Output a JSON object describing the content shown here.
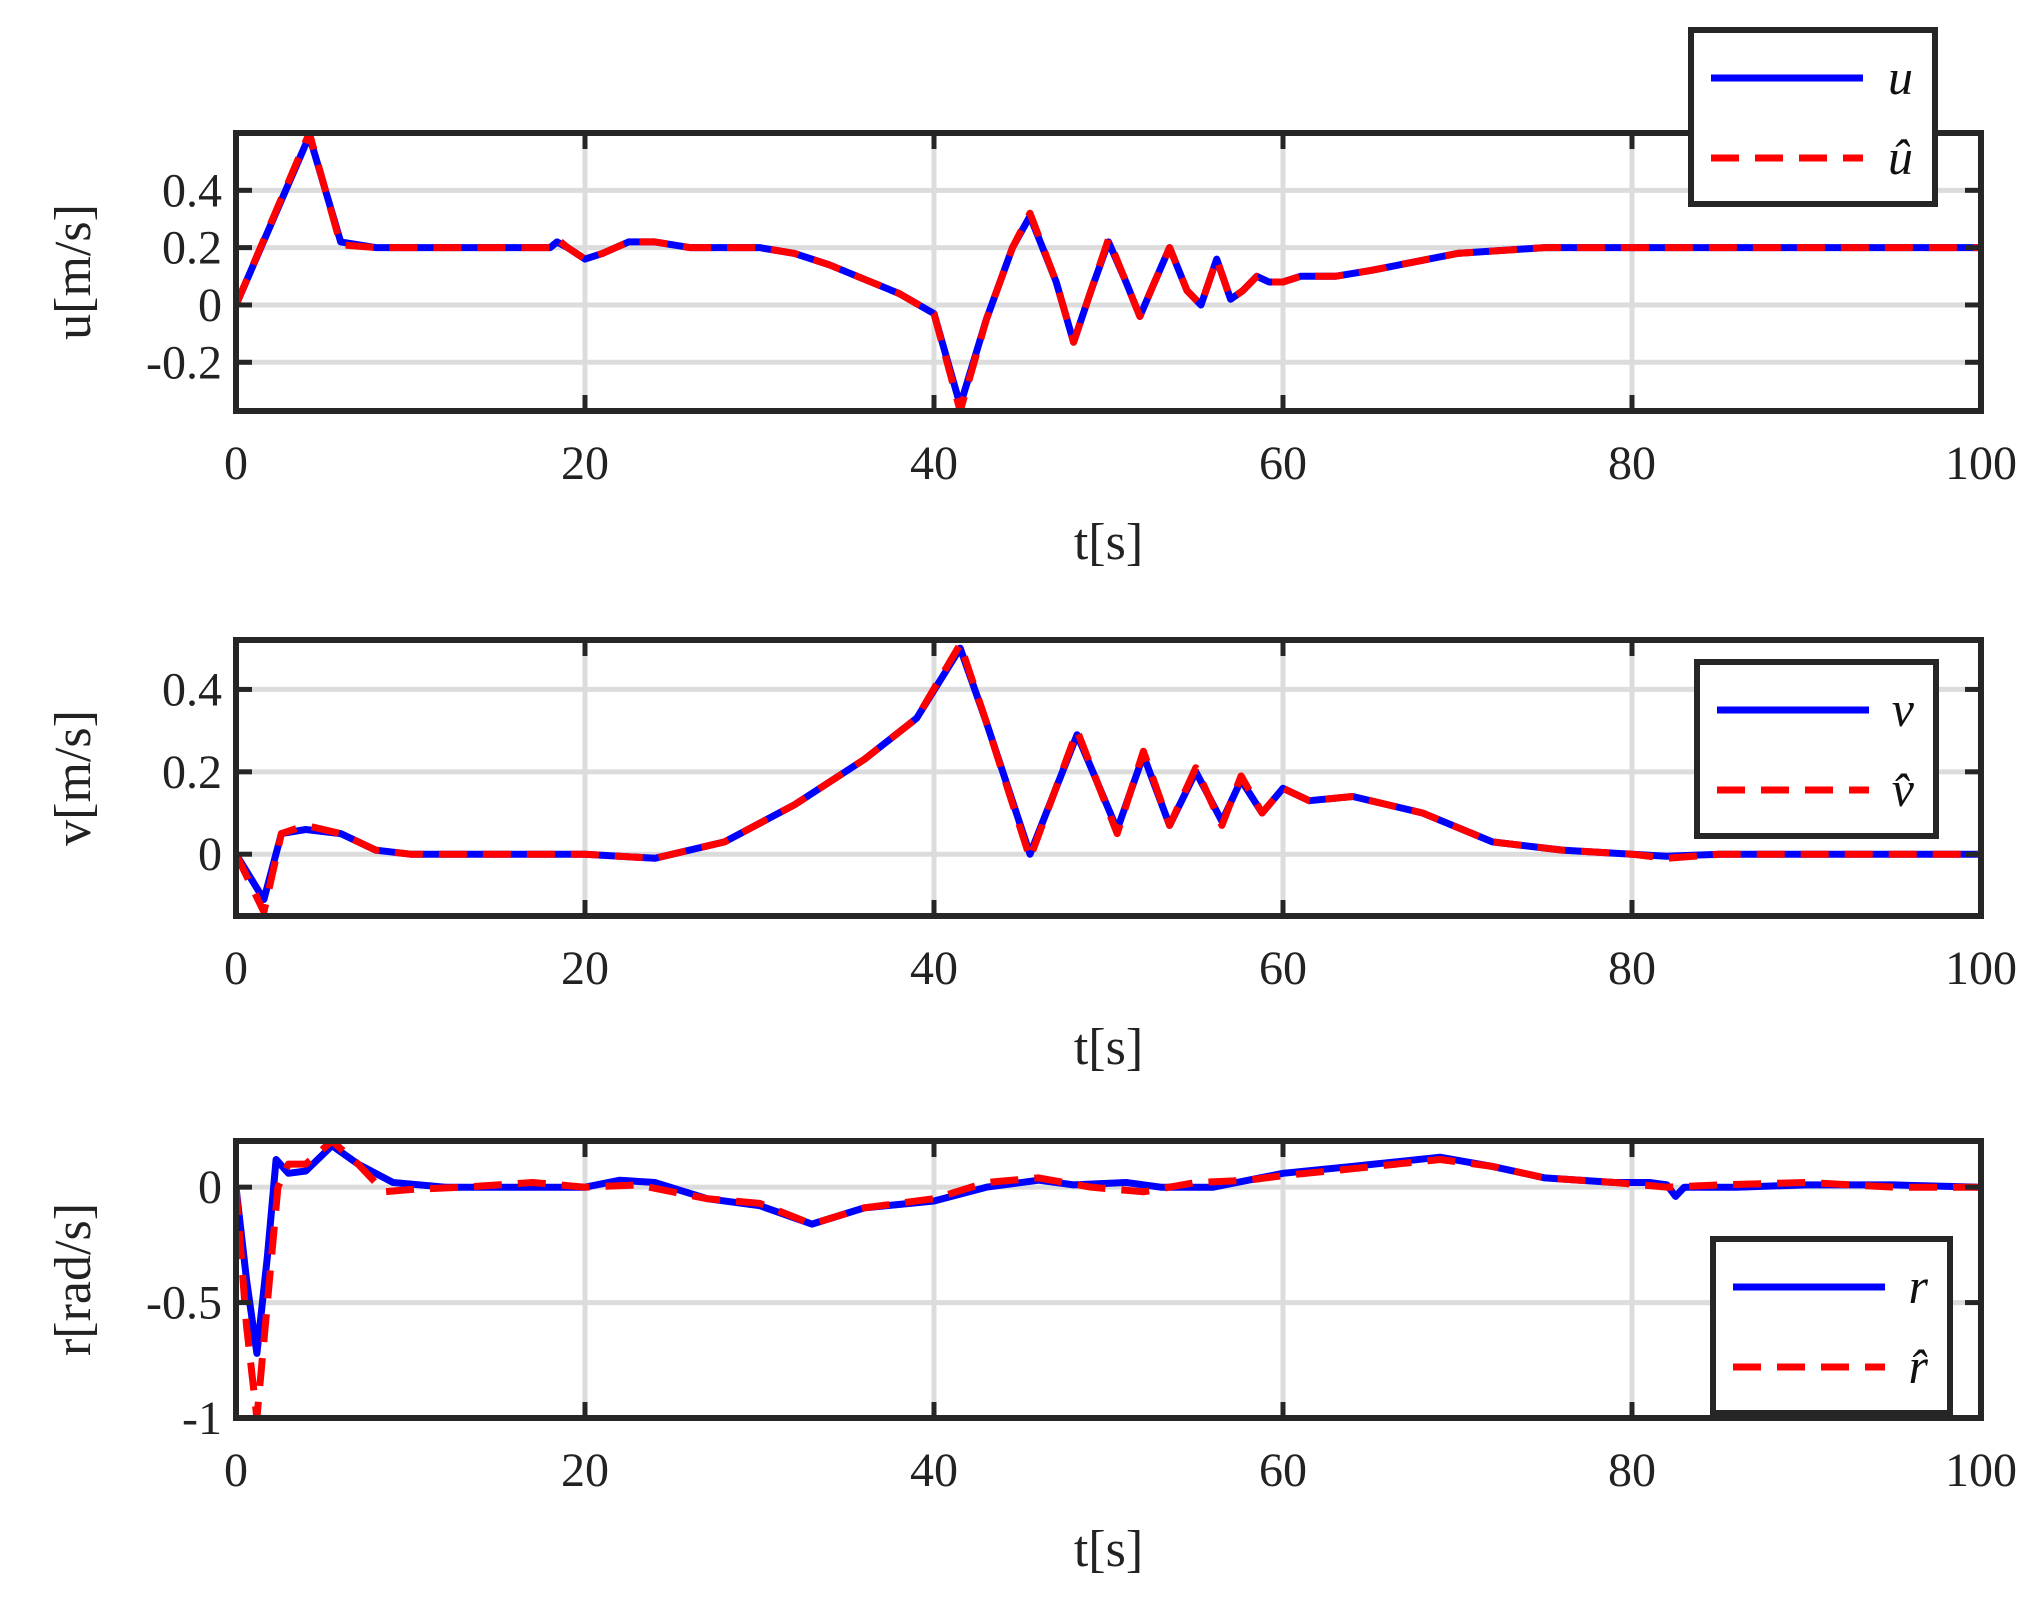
{
  "colors": {
    "measured": "#0000ff",
    "estimated": "#ff0000",
    "grid": "#dcdcdc",
    "frame": "#262626"
  },
  "chart_data": [
    {
      "type": "line",
      "xlabel": "t[s]",
      "ylabel": "u[m/s]",
      "xlim": [
        0,
        100
      ],
      "ylim": [
        -0.37,
        0.6
      ],
      "xticks": [
        0,
        20,
        40,
        60,
        80,
        100
      ],
      "yticks": [
        0.4,
        0.2,
        0,
        -0.2
      ],
      "ytick_labels": [
        "0.4",
        "0.2",
        "0",
        "-0.2"
      ],
      "grid": true,
      "legend_position": "top-right",
      "series": [
        {
          "name": "u",
          "x": [
            0,
            4.2,
            6,
            8,
            10,
            18,
            18.4,
            19,
            20,
            21,
            22.5,
            24,
            26,
            28,
            30,
            32,
            34,
            36,
            38,
            40,
            41.5,
            43,
            44.5,
            45.5,
            47,
            48,
            49,
            50,
            51,
            51.8,
            52.5,
            53.5,
            54.5,
            55.3,
            56.2,
            57,
            57.7,
            58.5,
            59.2,
            60,
            61,
            63,
            65,
            70,
            75,
            80,
            85,
            90,
            95,
            100
          ],
          "y": [
            0,
            0.59,
            0.22,
            0.2,
            0.2,
            0.2,
            0.22,
            0.2,
            0.16,
            0.18,
            0.22,
            0.22,
            0.2,
            0.2,
            0.2,
            0.18,
            0.14,
            0.09,
            0.04,
            -0.03,
            -0.35,
            -0.05,
            0.2,
            0.31,
            0.08,
            -0.13,
            0.05,
            0.22,
            0.08,
            -0.04,
            0.06,
            0.2,
            0.05,
            0,
            0.16,
            0.02,
            0.05,
            0.1,
            0.08,
            0.08,
            0.1,
            0.1,
            0.12,
            0.18,
            0.2,
            0.2,
            0.2,
            0.2,
            0.2,
            0.2
          ]
        },
        {
          "name": "û",
          "x": [
            0,
            4.2,
            6,
            8,
            10,
            18,
            18.4,
            19,
            20,
            21,
            22.5,
            24,
            26,
            28,
            30,
            32,
            34,
            36,
            38,
            40,
            41.5,
            43,
            44.5,
            45.5,
            47,
            48,
            49,
            50,
            51,
            51.8,
            52.5,
            53.5,
            54.5,
            55.3,
            56.2,
            57,
            57.7,
            58.5,
            59.2,
            60,
            61,
            63,
            65,
            70,
            75,
            80,
            85,
            90,
            95,
            100
          ],
          "y": [
            0,
            0.6,
            0.21,
            0.2,
            0.2,
            0.2,
            0.23,
            0.2,
            0.16,
            0.18,
            0.22,
            0.22,
            0.2,
            0.2,
            0.2,
            0.18,
            0.14,
            0.09,
            0.04,
            -0.03,
            -0.37,
            -0.05,
            0.2,
            0.32,
            0.08,
            -0.13,
            0.05,
            0.23,
            0.08,
            -0.04,
            0.06,
            0.2,
            0.05,
            0,
            0.16,
            0.02,
            0.05,
            0.1,
            0.08,
            0.08,
            0.1,
            0.1,
            0.12,
            0.18,
            0.2,
            0.2,
            0.2,
            0.2,
            0.2,
            0.2
          ]
        }
      ]
    },
    {
      "type": "line",
      "xlabel": "t[s]",
      "ylabel": "v[m/s]",
      "xlim": [
        0,
        100
      ],
      "ylim": [
        -0.15,
        0.52
      ],
      "xticks": [
        0,
        20,
        40,
        60,
        80,
        100
      ],
      "yticks": [
        0.4,
        0.2,
        0
      ],
      "ytick_labels": [
        "0.4",
        "0.2",
        "0"
      ],
      "grid": true,
      "legend_position": "top-right",
      "series": [
        {
          "name": "v",
          "x": [
            0,
            1.6,
            2.6,
            4,
            6,
            8,
            10,
            15,
            20,
            24,
            28,
            32,
            36,
            39,
            41.5,
            43,
            45.5,
            48.2,
            50.5,
            52,
            53.5,
            55,
            56.5,
            57.6,
            58.8,
            60,
            61.5,
            64,
            68,
            72,
            76,
            80,
            82,
            85,
            90,
            95,
            100
          ],
          "y": [
            0,
            -0.11,
            0.05,
            0.06,
            0.05,
            0.01,
            0,
            0,
            0,
            -0.01,
            0.03,
            0.12,
            0.23,
            0.33,
            0.5,
            0.32,
            0,
            0.29,
            0.06,
            0.24,
            0.07,
            0.2,
            0.08,
            0.18,
            0.1,
            0.16,
            0.13,
            0.14,
            0.1,
            0.03,
            0.01,
            0,
            -0.005,
            0,
            0,
            0,
            0
          ]
        },
        {
          "name": "v̂",
          "x": [
            0,
            1.6,
            2.6,
            4,
            6,
            8,
            10,
            15,
            20,
            24,
            28,
            32,
            36,
            39,
            41.5,
            43,
            45.5,
            48.2,
            50.5,
            52,
            53.5,
            55,
            56.5,
            57.6,
            58.8,
            60,
            61.5,
            64,
            68,
            72,
            76,
            80,
            82,
            85,
            90,
            95,
            100
          ],
          "y": [
            0,
            -0.14,
            0.05,
            0.07,
            0.05,
            0.01,
            0,
            0,
            0,
            -0.01,
            0.03,
            0.12,
            0.23,
            0.33,
            0.51,
            0.32,
            -0.01,
            0.3,
            0.05,
            0.25,
            0.07,
            0.21,
            0.07,
            0.19,
            0.1,
            0.16,
            0.13,
            0.14,
            0.1,
            0.03,
            0.01,
            0,
            -0.01,
            0,
            0,
            0,
            0
          ]
        }
      ]
    },
    {
      "type": "line",
      "xlabel": "t[s]",
      "ylabel": "r[rad/s]",
      "xlim": [
        0,
        100
      ],
      "ylim": [
        -1,
        0.2
      ],
      "xticks": [
        0,
        20,
        40,
        60,
        80,
        100
      ],
      "yticks": [
        0,
        -0.5,
        -1
      ],
      "ytick_labels": [
        "0",
        "-0.5",
        "-1"
      ],
      "grid": true,
      "legend_position": "bottom-right",
      "series": [
        {
          "name": "r",
          "x": [
            0,
            0.6,
            1.2,
            1.8,
            2.3,
            3,
            4,
            5.5,
            7,
            9,
            12,
            16,
            20,
            22,
            24,
            27,
            30,
            33,
            36,
            40,
            43,
            46,
            48,
            51,
            53,
            56,
            60,
            64,
            69,
            72,
            75,
            79,
            81,
            82,
            82.5,
            83,
            86,
            90,
            95,
            100
          ],
          "y": [
            0,
            -0.4,
            -0.72,
            -0.3,
            0.12,
            0.06,
            0.07,
            0.18,
            0.1,
            0.02,
            0,
            0,
            0,
            0.03,
            0.02,
            -0.05,
            -0.08,
            -0.16,
            -0.09,
            -0.06,
            0,
            0.03,
            0.01,
            0.02,
            0,
            0,
            0.06,
            0.09,
            0.13,
            0.09,
            0.04,
            0.02,
            0.02,
            0.01,
            -0.04,
            0,
            0,
            0.01,
            0.01,
            0
          ]
        },
        {
          "name": "r̂",
          "x": [
            0,
            0.6,
            1.2,
            1.8,
            2.4,
            3,
            4,
            5.5,
            7,
            8.5,
            10,
            13,
            17,
            20,
            23,
            27,
            30,
            33,
            36,
            40,
            43,
            46,
            49,
            52,
            55,
            58,
            60,
            64,
            69,
            72,
            75,
            79,
            82,
            85,
            90,
            95,
            100
          ],
          "y": [
            0,
            -0.6,
            -1,
            -0.5,
            0,
            0.1,
            0.1,
            0.2,
            0.1,
            -0.02,
            -0.01,
            0,
            0.02,
            0,
            0.01,
            -0.05,
            -0.07,
            -0.16,
            -0.09,
            -0.05,
            0.02,
            0.04,
            0,
            -0.02,
            0.02,
            0.03,
            0.05,
            0.08,
            0.12,
            0.09,
            0.04,
            0.02,
            0,
            0.01,
            0.02,
            0,
            0
          ]
        }
      ]
    }
  ]
}
